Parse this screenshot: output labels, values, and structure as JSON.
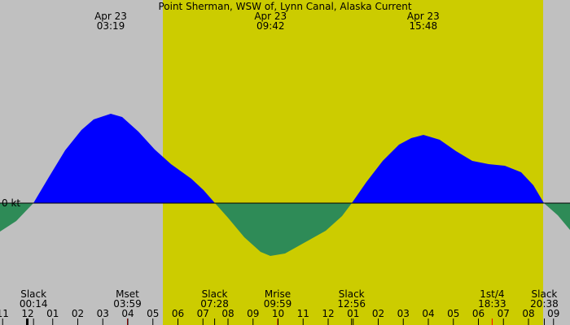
{
  "chart_data": {
    "type": "area",
    "title": "Point Sherman, WSW of, Lynn Canal, Alaska Current",
    "ylabel": "0 kt",
    "colors": {
      "background": "#c0c0c0",
      "daylight": "#cccc00",
      "flood": "#0000ff",
      "ebb": "#2e8b57",
      "moon_tick": "#ff0000"
    },
    "daylight": {
      "start": "05:24",
      "end": "20:38"
    },
    "peaks": [
      {
        "date": "Apr 23",
        "time": "03:19"
      },
      {
        "date": "Apr 23",
        "time": "09:42"
      },
      {
        "date": "Apr 23",
        "time": "15:48"
      }
    ],
    "events": [
      {
        "label": "Slack",
        "time": "00:14"
      },
      {
        "label": "Mset",
        "time": "03:59"
      },
      {
        "label": "Slack",
        "time": "07:28"
      },
      {
        "label": "Mrise",
        "time": "09:59"
      },
      {
        "label": "Slack",
        "time": "12:56"
      },
      {
        "label": "1st/4",
        "time": "18:33"
      },
      {
        "label": "Slack",
        "time": "20:38"
      }
    ],
    "hour_ticks": [
      "11",
      "12",
      "01",
      "02",
      "03",
      "04",
      "05",
      "06",
      "07",
      "08",
      "09",
      "10",
      "11",
      "12",
      "01",
      "02",
      "03",
      "04",
      "05",
      "06",
      "07",
      "08",
      "09"
    ]
  }
}
